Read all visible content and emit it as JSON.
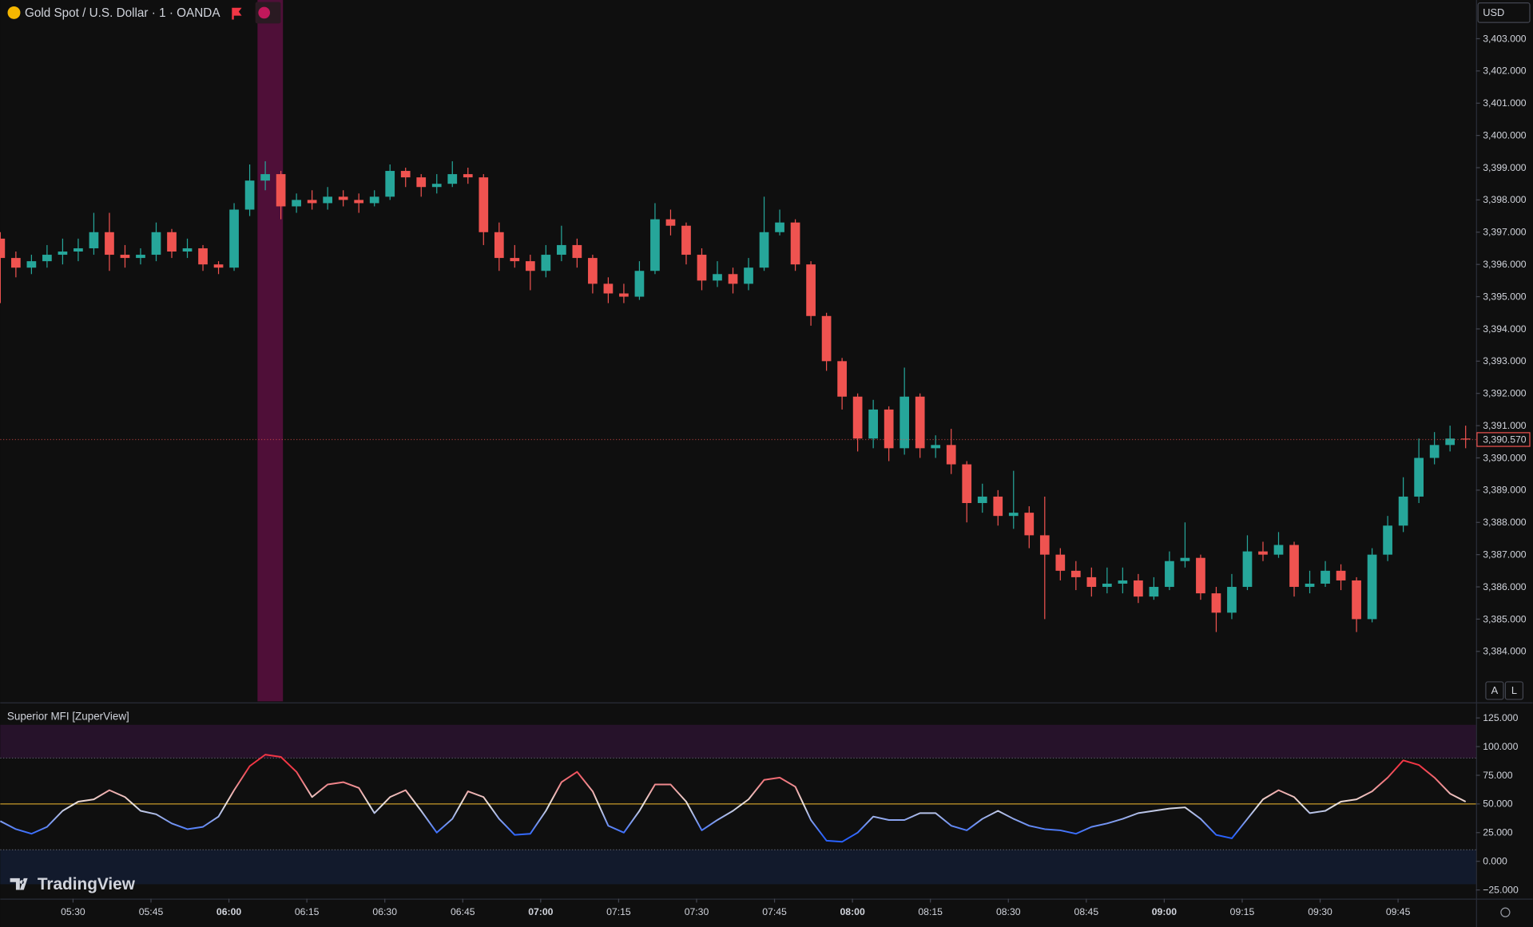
{
  "chart_data": [
    {
      "type": "candlestick",
      "title": "Gold Spot / U.S. Dollar · 1 · OANDA",
      "currency": "USD",
      "buttons": [
        "A",
        "L"
      ],
      "last_price": {
        "value": 3390.57,
        "label": "3,390.570"
      },
      "up_color": "#26a69a",
      "down_color": "#ef5350",
      "highlight_range": [
        365.5,
        370.4
      ],
      "highlight_color": "#4f0f38",
      "xlim": [
        316,
        600
      ],
      "ylim": [
        3382.45,
        3404.2
      ],
      "yticks": [
        {
          "value": 3384,
          "label": "3,384.000"
        },
        {
          "value": 3385,
          "label": "3,385.000"
        },
        {
          "value": 3386,
          "label": "3,386.000"
        },
        {
          "value": 3387,
          "label": "3,387.000"
        },
        {
          "value": 3388,
          "label": "3,388.000"
        },
        {
          "value": 3389,
          "label": "3,389.000"
        },
        {
          "value": 3390,
          "label": "3,390.000"
        },
        {
          "value": 3391,
          "label": "3,391.000"
        },
        {
          "value": 3392,
          "label": "3,392.000"
        },
        {
          "value": 3393,
          "label": "3,393.000"
        },
        {
          "value": 3394,
          "label": "3,394.000"
        },
        {
          "value": 3395,
          "label": "3,395.000"
        },
        {
          "value": 3396,
          "label": "3,396.000"
        },
        {
          "value": 3397,
          "label": "3,397.000"
        },
        {
          "value": 3398,
          "label": "3,398.000"
        },
        {
          "value": 3399,
          "label": "3,399.000"
        },
        {
          "value": 3400,
          "label": "3,400.000"
        },
        {
          "value": 3401,
          "label": "3,401.000"
        },
        {
          "value": 3402,
          "label": "3,402.000"
        },
        {
          "value": 3403,
          "label": "3,403.000"
        }
      ],
      "x": [
        316,
        319,
        322,
        325,
        328,
        331,
        334,
        337,
        340,
        343,
        346,
        349,
        352,
        355,
        358,
        361,
        364,
        367,
        370,
        373,
        376,
        379,
        382,
        385,
        388,
        391,
        394,
        397,
        400,
        403,
        406,
        409,
        412,
        415,
        418,
        421,
        424,
        427,
        430,
        433,
        436,
        439,
        442,
        445,
        448,
        451,
        454,
        457,
        460,
        463,
        466,
        469,
        472,
        475,
        478,
        481,
        484,
        487,
        490,
        493,
        496,
        499,
        502,
        505,
        508,
        511,
        514,
        517,
        520,
        523,
        526,
        529,
        532,
        535,
        538,
        541,
        544,
        547,
        550,
        553,
        556,
        559,
        562,
        565,
        568,
        571,
        574,
        577,
        580,
        583,
        586,
        589,
        592,
        595,
        598
      ],
      "ohlc": [
        [
          3396.8,
          3397.0,
          3394.8,
          3396.2
        ],
        [
          3396.2,
          3396.4,
          3395.6,
          3395.9
        ],
        [
          3395.9,
          3396.3,
          3395.7,
          3396.1
        ],
        [
          3396.1,
          3396.6,
          3395.9,
          3396.3
        ],
        [
          3396.3,
          3396.8,
          3396.0,
          3396.4
        ],
        [
          3396.4,
          3396.8,
          3396.1,
          3396.5
        ],
        [
          3396.5,
          3397.6,
          3396.3,
          3397.0
        ],
        [
          3397.0,
          3397.6,
          3395.8,
          3396.3
        ],
        [
          3396.3,
          3396.6,
          3395.9,
          3396.2
        ],
        [
          3396.2,
          3396.5,
          3396.0,
          3396.3
        ],
        [
          3396.3,
          3397.3,
          3396.1,
          3397.0
        ],
        [
          3397.0,
          3397.1,
          3396.2,
          3396.4
        ],
        [
          3396.4,
          3396.8,
          3396.2,
          3396.5
        ],
        [
          3396.5,
          3396.6,
          3395.8,
          3396.0
        ],
        [
          3396.0,
          3396.1,
          3395.7,
          3395.9
        ],
        [
          3395.9,
          3397.9,
          3395.8,
          3397.7
        ],
        [
          3397.7,
          3399.1,
          3397.5,
          3398.6
        ],
        [
          3398.6,
          3399.2,
          3398.3,
          3398.8
        ],
        [
          3398.8,
          3398.9,
          3397.4,
          3397.8
        ],
        [
          3397.8,
          3398.2,
          3397.6,
          3398.0
        ],
        [
          3398.0,
          3398.3,
          3397.7,
          3397.9
        ],
        [
          3397.9,
          3398.4,
          3397.7,
          3398.1
        ],
        [
          3398.1,
          3398.3,
          3397.8,
          3398.0
        ],
        [
          3398.0,
          3398.2,
          3397.6,
          3397.9
        ],
        [
          3397.9,
          3398.3,
          3397.8,
          3398.1
        ],
        [
          3398.1,
          3399.1,
          3398.0,
          3398.9
        ],
        [
          3398.9,
          3399.0,
          3398.4,
          3398.7
        ],
        [
          3398.7,
          3398.8,
          3398.1,
          3398.4
        ],
        [
          3398.4,
          3398.8,
          3398.2,
          3398.5
        ],
        [
          3398.5,
          3399.2,
          3398.4,
          3398.8
        ],
        [
          3398.8,
          3399.0,
          3398.5,
          3398.7
        ],
        [
          3398.7,
          3398.8,
          3396.6,
          3397.0
        ],
        [
          3397.0,
          3397.3,
          3395.8,
          3396.2
        ],
        [
          3396.2,
          3396.6,
          3395.9,
          3396.1
        ],
        [
          3396.1,
          3396.3,
          3395.2,
          3395.8
        ],
        [
          3395.8,
          3396.6,
          3395.6,
          3396.3
        ],
        [
          3396.3,
          3397.2,
          3396.1,
          3396.6
        ],
        [
          3396.6,
          3396.8,
          3395.9,
          3396.2
        ],
        [
          3396.2,
          3396.3,
          3395.1,
          3395.4
        ],
        [
          3395.4,
          3395.6,
          3394.8,
          3395.1
        ],
        [
          3395.1,
          3395.4,
          3394.8,
          3395.0
        ],
        [
          3395.0,
          3396.1,
          3394.9,
          3395.8
        ],
        [
          3395.8,
          3397.9,
          3395.7,
          3397.4
        ],
        [
          3397.4,
          3397.7,
          3396.9,
          3397.2
        ],
        [
          3397.2,
          3397.3,
          3396.0,
          3396.3
        ],
        [
          3396.3,
          3396.5,
          3395.2,
          3395.5
        ],
        [
          3395.5,
          3396.1,
          3395.3,
          3395.7
        ],
        [
          3395.7,
          3395.9,
          3395.1,
          3395.4
        ],
        [
          3395.4,
          3396.2,
          3395.2,
          3395.9
        ],
        [
          3395.9,
          3398.1,
          3395.8,
          3397.0
        ],
        [
          3397.0,
          3397.7,
          3396.9,
          3397.3
        ],
        [
          3397.3,
          3397.4,
          3395.8,
          3396.0
        ],
        [
          3396.0,
          3396.1,
          3394.1,
          3394.4
        ],
        [
          3394.4,
          3394.5,
          3392.7,
          3393.0
        ],
        [
          3393.0,
          3393.1,
          3391.5,
          3391.9
        ],
        [
          3391.9,
          3392.0,
          3390.2,
          3390.6
        ],
        [
          3390.6,
          3391.8,
          3390.3,
          3391.5
        ],
        [
          3391.5,
          3391.6,
          3389.9,
          3390.3
        ],
        [
          3390.3,
          3392.8,
          3390.1,
          3391.9
        ],
        [
          3391.9,
          3392.0,
          3390.0,
          3390.3
        ],
        [
          3390.3,
          3390.7,
          3390.0,
          3390.4
        ],
        [
          3390.4,
          3390.9,
          3389.5,
          3389.8
        ],
        [
          3389.8,
          3389.9,
          3388.0,
          3388.6
        ],
        [
          3388.6,
          3389.2,
          3388.3,
          3388.8
        ],
        [
          3388.8,
          3389.0,
          3387.9,
          3388.2
        ],
        [
          3388.2,
          3389.6,
          3387.8,
          3388.3
        ],
        [
          3388.3,
          3388.5,
          3387.2,
          3387.6
        ],
        [
          3387.6,
          3388.8,
          3385.0,
          3387.0
        ],
        [
          3387.0,
          3387.2,
          3386.2,
          3386.5
        ],
        [
          3386.5,
          3386.8,
          3385.9,
          3386.3
        ],
        [
          3386.3,
          3386.6,
          3385.7,
          3386.0
        ],
        [
          3386.0,
          3386.6,
          3385.8,
          3386.1
        ],
        [
          3386.1,
          3386.6,
          3385.8,
          3386.2
        ],
        [
          3386.2,
          3386.4,
          3385.5,
          3385.7
        ],
        [
          3385.7,
          3386.3,
          3385.6,
          3386.0
        ],
        [
          3386.0,
          3387.1,
          3385.9,
          3386.8
        ],
        [
          3386.8,
          3388.0,
          3386.6,
          3386.9
        ],
        [
          3386.9,
          3387.0,
          3385.6,
          3385.8
        ],
        [
          3385.8,
          3386.0,
          3384.6,
          3385.2
        ],
        [
          3385.2,
          3386.4,
          3385.0,
          3386.0
        ],
        [
          3386.0,
          3387.6,
          3385.9,
          3387.1
        ],
        [
          3387.1,
          3387.4,
          3386.8,
          3387.0
        ],
        [
          3387.0,
          3387.7,
          3386.9,
          3387.3
        ],
        [
          3387.3,
          3387.4,
          3385.7,
          3386.0
        ],
        [
          3386.0,
          3386.5,
          3385.8,
          3386.1
        ],
        [
          3386.1,
          3386.8,
          3386.0,
          3386.5
        ],
        [
          3386.5,
          3386.7,
          3385.9,
          3386.2
        ],
        [
          3386.2,
          3386.3,
          3384.6,
          3385.0
        ],
        [
          3385.0,
          3387.2,
          3384.9,
          3387.0
        ],
        [
          3387.0,
          3388.2,
          3386.8,
          3387.9
        ],
        [
          3387.9,
          3389.4,
          3387.7,
          3388.8
        ],
        [
          3388.8,
          3390.6,
          3388.6,
          3390.0
        ],
        [
          3390.0,
          3390.8,
          3389.8,
          3390.4
        ],
        [
          3390.4,
          3391.0,
          3390.2,
          3390.6
        ],
        [
          3390.6,
          3391.0,
          3390.3,
          3390.57
        ]
      ]
    },
    {
      "type": "line",
      "title": "Superior MFI [ZuperView]",
      "xlim": [
        316,
        600
      ],
      "ylim": [
        -32.6,
        136.9
      ],
      "yticks": [
        {
          "value": -25,
          "label": "−25.000"
        },
        {
          "value": 0,
          "label": "0.000"
        },
        {
          "value": 25,
          "label": "25.000"
        },
        {
          "value": 50,
          "label": "50.000"
        },
        {
          "value": 75,
          "label": "75.000"
        },
        {
          "value": 100,
          "label": "100.000"
        },
        {
          "value": 125,
          "label": "125.000"
        }
      ],
      "xticks": [
        {
          "value": 330,
          "label": "05:30"
        },
        {
          "value": 345,
          "label": "05:45"
        },
        {
          "value": 360,
          "label": "06:00"
        },
        {
          "value": 375,
          "label": "06:15"
        },
        {
          "value": 390,
          "label": "06:30"
        },
        {
          "value": 405,
          "label": "06:45"
        },
        {
          "value": 420,
          "label": "07:00"
        },
        {
          "value": 435,
          "label": "07:15"
        },
        {
          "value": 450,
          "label": "07:30"
        },
        {
          "value": 465,
          "label": "07:45"
        },
        {
          "value": 480,
          "label": "08:00"
        },
        {
          "value": 495,
          "label": "08:15"
        },
        {
          "value": 510,
          "label": "08:30"
        },
        {
          "value": 525,
          "label": "08:45"
        },
        {
          "value": 540,
          "label": "09:00"
        },
        {
          "value": 555,
          "label": "09:15"
        },
        {
          "value": 570,
          "label": "09:30"
        },
        {
          "value": 585,
          "label": "09:45"
        }
      ],
      "zones": [
        {
          "from": 90,
          "to": 119,
          "color": "#26122a"
        },
        {
          "from": -20,
          "to": 10,
          "color": "#121a2c"
        }
      ],
      "levels": [
        {
          "value": 90,
          "color": "#5d606b",
          "dash": true
        },
        {
          "value": 10,
          "color": "#5d606b",
          "dash": true
        },
        {
          "value": 50,
          "color": "#c79a2a",
          "dash": false
        }
      ],
      "line_gradient": [
        {
          "value": 22,
          "color": "#2962ff"
        },
        {
          "value": 50,
          "color": "#ece6df"
        },
        {
          "value": 82,
          "color": "#f23645"
        }
      ],
      "x": [
        316,
        319,
        322,
        325,
        328,
        331,
        334,
        337,
        340,
        343,
        346,
        349,
        352,
        355,
        358,
        361,
        364,
        367,
        370,
        373,
        376,
        379,
        382,
        385,
        388,
        391,
        394,
        397,
        400,
        403,
        406,
        409,
        412,
        415,
        418,
        421,
        424,
        427,
        430,
        433,
        436,
        439,
        442,
        445,
        448,
        451,
        454,
        457,
        460,
        463,
        466,
        469,
        472,
        475,
        478,
        481,
        484,
        487,
        490,
        493,
        496,
        499,
        502,
        505,
        508,
        511,
        514,
        517,
        520,
        523,
        526,
        529,
        532,
        535,
        538,
        541,
        544,
        547,
        550,
        553,
        556,
        559,
        562,
        565,
        568,
        571,
        574,
        577,
        580,
        583,
        586,
        589,
        592,
        595,
        598
      ],
      "values": [
        35,
        28,
        24,
        30,
        44,
        52,
        54,
        62,
        56,
        44,
        41,
        33,
        28,
        30,
        39,
        62,
        83,
        93,
        91,
        78,
        56,
        67,
        69,
        64,
        42,
        56,
        62,
        44,
        25,
        37,
        61,
        56,
        37,
        23,
        24,
        44,
        69,
        78,
        61,
        31,
        25,
        44,
        67,
        67,
        52,
        27,
        36,
        44,
        54,
        71,
        73,
        65,
        36,
        18,
        17,
        25,
        39,
        36,
        36,
        42,
        42,
        31,
        27,
        37,
        44,
        37,
        31,
        28,
        27,
        24,
        30,
        33,
        37,
        42,
        44,
        46,
        47,
        37,
        23,
        20,
        37,
        54,
        62,
        56,
        42,
        44,
        52,
        54,
        61,
        73,
        88,
        84,
        73,
        59,
        52
      ]
    }
  ],
  "branding": "TradingView"
}
